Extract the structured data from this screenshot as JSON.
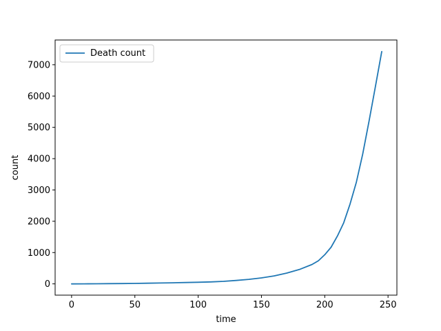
{
  "chart_data": {
    "type": "line",
    "title": "",
    "xlabel": "time",
    "ylabel": "count",
    "xlim": [
      -13,
      257
    ],
    "ylim": [
      -360,
      7790
    ],
    "xticks": [
      0,
      50,
      100,
      150,
      200,
      250
    ],
    "yticks": [
      0,
      1000,
      2000,
      3000,
      4000,
      5000,
      6000,
      7000
    ],
    "grid": false,
    "legend": "top-left",
    "series": [
      {
        "name": "Death count",
        "color": "#1f77b4",
        "x": [
          0,
          10,
          20,
          30,
          40,
          50,
          60,
          70,
          80,
          90,
          100,
          110,
          120,
          130,
          140,
          150,
          160,
          170,
          180,
          190,
          195,
          200,
          205,
          210,
          215,
          220,
          225,
          230,
          235,
          240,
          245
        ],
        "y": [
          0,
          2,
          4,
          7,
          10,
          15,
          21,
          28,
          35,
          43,
          52,
          64,
          80,
          110,
          145,
          190,
          255,
          345,
          460,
          620,
          740,
          930,
          1170,
          1530,
          1950,
          2550,
          3250,
          4150,
          5200,
          6300,
          7420
        ]
      }
    ]
  }
}
